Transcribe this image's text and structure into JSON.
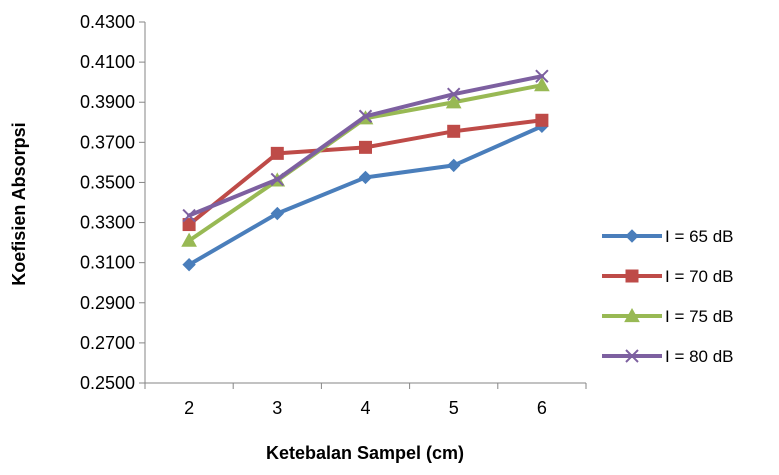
{
  "chart_data": {
    "type": "line",
    "title": "",
    "xlabel": "Ketebalan Sampel (cm)",
    "ylabel": "Koefisien Absorpsi",
    "categories": [
      "2",
      "3",
      "4",
      "5",
      "6"
    ],
    "ylim": [
      0.25,
      0.43
    ],
    "yticks": [
      "0.2500",
      "0.2700",
      "0.2900",
      "0.3100",
      "0.3300",
      "0.3500",
      "0.3700",
      "0.3900",
      "0.4100",
      "0.4300"
    ],
    "grid": false,
    "legend_position": "right",
    "series": [
      {
        "name": "I = 65 dB",
        "color": "#4A7EBB",
        "marker": "diamond",
        "values": [
          0.309,
          0.3345,
          0.3525,
          0.3585,
          0.378
        ]
      },
      {
        "name": "I = 70 dB",
        "color": "#BE4B48",
        "marker": "square",
        "values": [
          0.329,
          0.3645,
          0.3675,
          0.3755,
          0.381
        ]
      },
      {
        "name": "I = 75 dB",
        "color": "#98B954",
        "marker": "triangle",
        "values": [
          0.321,
          0.351,
          0.382,
          0.39,
          0.3985
        ]
      },
      {
        "name": "I = 80 dB",
        "color": "#7D60A0",
        "marker": "x",
        "values": [
          0.3335,
          0.3515,
          0.383,
          0.394,
          0.403
        ]
      }
    ]
  }
}
